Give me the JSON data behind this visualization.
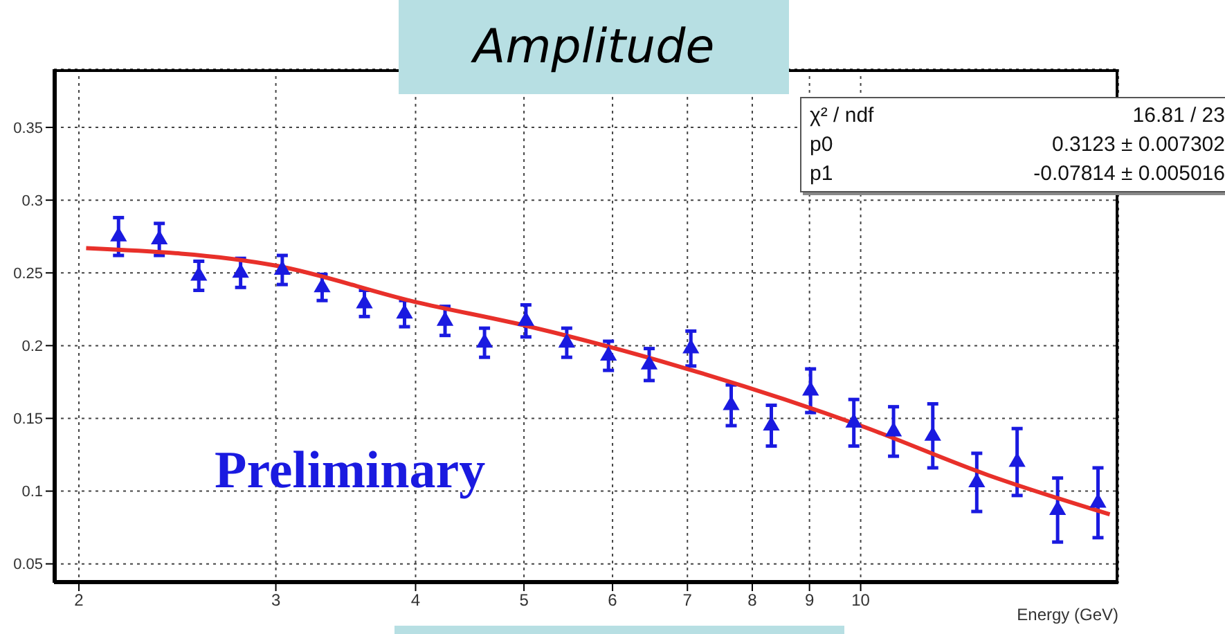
{
  "chart_data": {
    "type": "scatter",
    "title": "Amplitude",
    "xlabel": "Energy (GeV)",
    "annotations": [
      "χ² / ndf",
      "16.81 / 23",
      "p0",
      "0.3123 ± 0.007302",
      "p1",
      "-0.07814 ± 0.005016",
      "Preliminary"
    ],
    "log": "x",
    "xlim": [
      1.9,
      17
    ],
    "ylim": [
      0.037,
      0.39
    ],
    "xticks": [
      2,
      3,
      4,
      5,
      6,
      7,
      8,
      9,
      10
    ],
    "yticks": [
      0.05,
      0.1,
      0.15,
      0.2,
      0.25,
      0.3,
      0.35
    ],
    "grid": true,
    "series": [
      {
        "marker": "triangle",
        "color": "#1a1ae0",
        "x": [
          2.17,
          2.36,
          2.56,
          2.79,
          3.04,
          3.3,
          3.6,
          3.91,
          4.25,
          4.61,
          5.02,
          5.46,
          5.95,
          6.47,
          7.05,
          7.66,
          8.32,
          9.02,
          9.86,
          10.7,
          11.6,
          12.7,
          13.8,
          15.0,
          16.3
        ],
        "values": [
          0.275,
          0.273,
          0.248,
          0.25,
          0.252,
          0.24,
          0.229,
          0.222,
          0.217,
          0.202,
          0.217,
          0.202,
          0.193,
          0.187,
          0.198,
          0.159,
          0.145,
          0.169,
          0.147,
          0.141,
          0.138,
          0.106,
          0.12,
          0.087,
          0.092
        ],
        "errors": [
          0.013,
          0.011,
          0.01,
          0.01,
          0.01,
          0.009,
          0.009,
          0.009,
          0.01,
          0.01,
          0.011,
          0.01,
          0.01,
          0.011,
          0.012,
          0.014,
          0.014,
          0.015,
          0.016,
          0.017,
          0.022,
          0.02,
          0.023,
          0.022,
          0.024
        ]
      },
      {
        "type": "line",
        "color": "#e8302a",
        "line_style": "solid",
        "x": [
          2.03,
          3,
          4,
          5,
          7,
          10,
          13,
          16.7
        ],
        "values": [
          0.267,
          0.255,
          0.23,
          0.214,
          0.184,
          0.145,
          0.111,
          0.084
        ]
      }
    ]
  }
}
